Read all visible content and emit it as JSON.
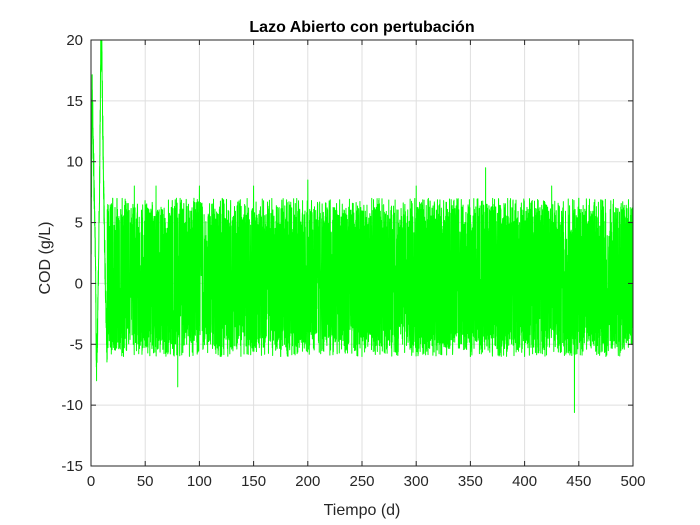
{
  "chart_data": {
    "type": "line",
    "title": "Lazo Abierto con pertubación",
    "xlabel": "Tiempo (d)",
    "ylabel": "COD (g/L)",
    "xlim": [
      0,
      500
    ],
    "ylim": [
      -15,
      20
    ],
    "xticks": [
      0,
      50,
      100,
      150,
      200,
      250,
      300,
      350,
      400,
      450,
      500
    ],
    "yticks": [
      -15,
      -10,
      -5,
      0,
      5,
      10,
      15,
      20
    ],
    "xtick_labels": [
      "0",
      "50",
      "100",
      "150",
      "200",
      "250",
      "300",
      "350",
      "400",
      "450",
      "500"
    ],
    "ytick_labels": [
      "-15",
      "-10",
      "-5",
      "0",
      "5",
      "10",
      "15",
      "20"
    ],
    "grid": true,
    "series": [
      {
        "color": "#00ff00",
        "x": [
          0,
          1,
          2,
          3,
          4,
          5,
          6,
          7,
          8,
          9,
          10,
          11,
          12,
          13,
          14,
          15,
          20,
          30,
          40,
          50,
          60,
          80,
          100,
          120,
          150,
          175,
          200,
          250,
          300,
          350,
          364,
          400,
          425,
          446,
          450,
          475,
          500
        ],
        "y": [
          0,
          16,
          12,
          7,
          3,
          -7,
          -4,
          2,
          9,
          18.8,
          18.8,
          12,
          6,
          1,
          -3,
          -6,
          7,
          -6,
          8,
          -5,
          8,
          -8.5,
          8,
          -6,
          8,
          -6,
          8.5,
          -6,
          8,
          -6,
          9.5,
          -6,
          8,
          -10.6,
          7,
          -6,
          7
        ],
        "envelope": {
          "x_start": 15,
          "x_end": 500,
          "upper_typical": 7,
          "lower_typical": -6,
          "upper_peak": 9.5,
          "lower_peak": -10.6
        }
      }
    ]
  }
}
